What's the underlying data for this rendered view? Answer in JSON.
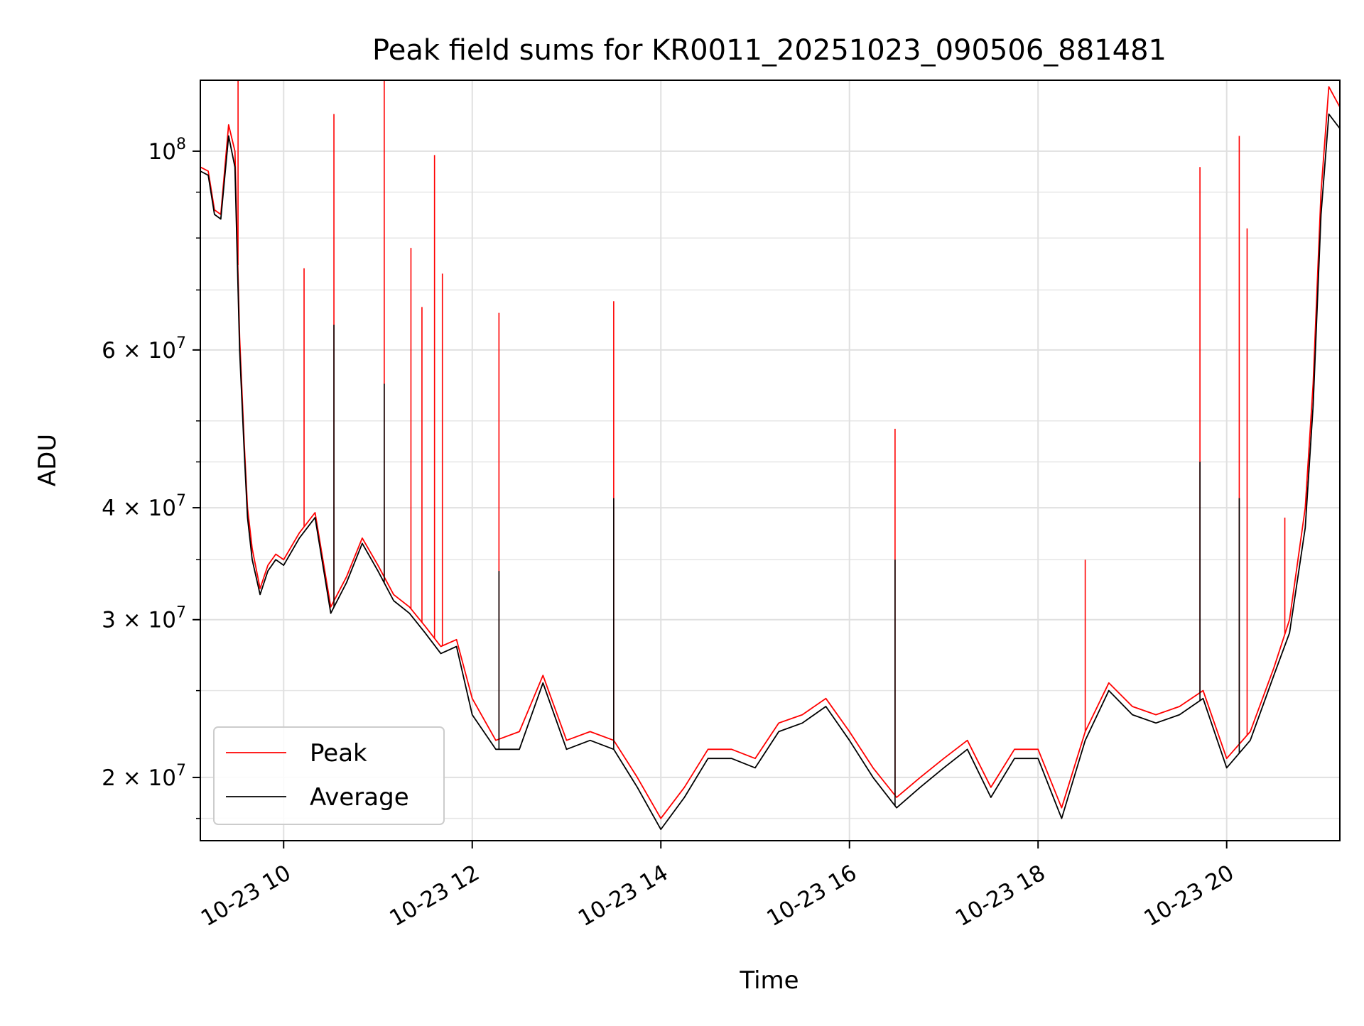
{
  "chart_data": {
    "type": "line",
    "title": "Peak field sums for KR0011_20251023_090506_881481",
    "xlabel": "Time",
    "ylabel": "ADU",
    "yscale": "log",
    "xlim": [
      "10-23 09:07",
      "10-23 21:12"
    ],
    "ylim": [
      17000000,
      120000000
    ],
    "grid": true,
    "legend_position": "lower-left",
    "x_ticks": [
      {
        "value": "10-23 10:00",
        "label": "10-23 10"
      },
      {
        "value": "10-23 12:00",
        "label": "10-23 12"
      },
      {
        "value": "10-23 14:00",
        "label": "10-23 14"
      },
      {
        "value": "10-23 16:00",
        "label": "10-23 16"
      },
      {
        "value": "10-23 18:00",
        "label": "10-23 18"
      },
      {
        "value": "10-23 20:00",
        "label": "10-23 20"
      }
    ],
    "y_ticks": [
      {
        "value": 20000000,
        "mantissa": "2",
        "exp": "7"
      },
      {
        "value": 30000000,
        "mantissa": "3",
        "exp": "7"
      },
      {
        "value": 40000000,
        "mantissa": "4",
        "exp": "7"
      },
      {
        "value": 60000000,
        "mantissa": "6",
        "exp": "7"
      },
      {
        "value": 100000000,
        "mantissa": "",
        "exp": "8"
      }
    ],
    "x": [
      "10-23 09:07",
      "10-23 09:12",
      "10-23 09:16",
      "10-23 09:20",
      "10-23 09:25",
      "10-23 09:29",
      "10-23 09:32",
      "10-23 09:35",
      "10-23 09:37",
      "10-23 09:40",
      "10-23 09:45",
      "10-23 09:50",
      "10-23 09:55",
      "10-23 10:00",
      "10-23 10:10",
      "10-23 10:20",
      "10-23 10:30",
      "10-23 10:40",
      "10-23 10:50",
      "10-23 11:00",
      "10-23 11:10",
      "10-23 11:20",
      "10-23 11:30",
      "10-23 11:40",
      "10-23 11:50",
      "10-23 12:00",
      "10-23 12:15",
      "10-23 12:30",
      "10-23 12:45",
      "10-23 13:00",
      "10-23 13:15",
      "10-23 13:30",
      "10-23 13:45",
      "10-23 14:00",
      "10-23 14:15",
      "10-23 14:30",
      "10-23 14:45",
      "10-23 15:00",
      "10-23 15:15",
      "10-23 15:30",
      "10-23 15:45",
      "10-23 16:00",
      "10-23 16:15",
      "10-23 16:30",
      "10-23 16:45",
      "10-23 17:00",
      "10-23 17:15",
      "10-23 17:30",
      "10-23 17:45",
      "10-23 18:00",
      "10-23 18:15",
      "10-23 18:30",
      "10-23 18:45",
      "10-23 19:00",
      "10-23 19:15",
      "10-23 19:30",
      "10-23 19:45",
      "10-23 20:00",
      "10-23 20:15",
      "10-23 20:30",
      "10-23 20:40",
      "10-23 20:50",
      "10-23 20:55",
      "10-23 21:00",
      "10-23 21:05",
      "10-23 21:12"
    ],
    "series": [
      {
        "name": "Peak",
        "color": "#ff0000",
        "values": [
          96000000,
          95000000,
          86000000,
          85000000,
          107000000,
          100000000,
          62000000,
          47000000,
          40000000,
          36000000,
          32500000,
          34500000,
          35500000,
          35000000,
          37500000,
          39500000,
          31000000,
          33500000,
          37000000,
          34500000,
          32000000,
          31000000,
          29500000,
          28000000,
          28500000,
          24500000,
          22000000,
          22500000,
          26000000,
          22000000,
          22500000,
          22000000,
          20000000,
          18000000,
          19500000,
          21500000,
          21500000,
          21000000,
          23000000,
          23500000,
          24500000,
          22500000,
          20500000,
          19000000,
          20000000,
          21000000,
          22000000,
          19500000,
          21500000,
          21500000,
          18500000,
          22500000,
          25500000,
          24000000,
          23500000,
          24000000,
          25000000,
          21000000,
          22500000,
          26500000,
          30000000,
          40000000,
          55000000,
          90000000,
          118000000,
          112000000
        ],
        "spikes": [
          {
            "x": "10-23 09:31",
            "value": 121000000
          },
          {
            "x": "10-23 10:13",
            "value": 74000000
          },
          {
            "x": "10-23 10:32",
            "value": 110000000
          },
          {
            "x": "10-23 11:04",
            "value": 120000000
          },
          {
            "x": "10-23 11:21",
            "value": 78000000
          },
          {
            "x": "10-23 11:28",
            "value": 67000000
          },
          {
            "x": "10-23 11:36",
            "value": 99000000
          },
          {
            "x": "10-23 11:41",
            "value": 73000000
          },
          {
            "x": "10-23 12:17",
            "value": 66000000
          },
          {
            "x": "10-23 13:30",
            "value": 68000000
          },
          {
            "x": "10-23 16:29",
            "value": 49000000
          },
          {
            "x": "10-23 18:30",
            "value": 35000000
          },
          {
            "x": "10-23 19:43",
            "value": 96000000
          },
          {
            "x": "10-23 20:08",
            "value": 104000000
          },
          {
            "x": "10-23 20:13",
            "value": 82000000
          },
          {
            "x": "10-23 20:37",
            "value": 39000000
          }
        ]
      },
      {
        "name": "Average",
        "color": "#000000",
        "values": [
          95000000,
          94000000,
          85000000,
          84000000,
          104000000,
          96000000,
          60000000,
          46000000,
          39000000,
          35000000,
          32000000,
          34000000,
          35000000,
          34500000,
          37000000,
          39000000,
          30500000,
          33000000,
          36500000,
          34000000,
          31500000,
          30500000,
          29000000,
          27500000,
          28000000,
          23500000,
          21500000,
          21500000,
          25500000,
          21500000,
          22000000,
          21500000,
          19500000,
          17500000,
          19000000,
          21000000,
          21000000,
          20500000,
          22500000,
          23000000,
          24000000,
          22000000,
          20000000,
          18500000,
          19500000,
          20500000,
          21500000,
          19000000,
          21000000,
          21000000,
          18000000,
          22000000,
          25000000,
          23500000,
          23000000,
          23500000,
          24500000,
          20500000,
          22000000,
          26000000,
          29000000,
          38000000,
          52000000,
          85000000,
          110000000,
          106000000
        ],
        "spikes": [
          {
            "x": "10-23 10:32",
            "value": 64000000
          },
          {
            "x": "10-23 11:04",
            "value": 55000000
          },
          {
            "x": "10-23 12:17",
            "value": 34000000
          },
          {
            "x": "10-23 13:30",
            "value": 41000000
          },
          {
            "x": "10-23 16:29",
            "value": 35000000
          },
          {
            "x": "10-23 19:43",
            "value": 45000000
          },
          {
            "x": "10-23 20:08",
            "value": 41000000
          }
        ]
      }
    ]
  }
}
